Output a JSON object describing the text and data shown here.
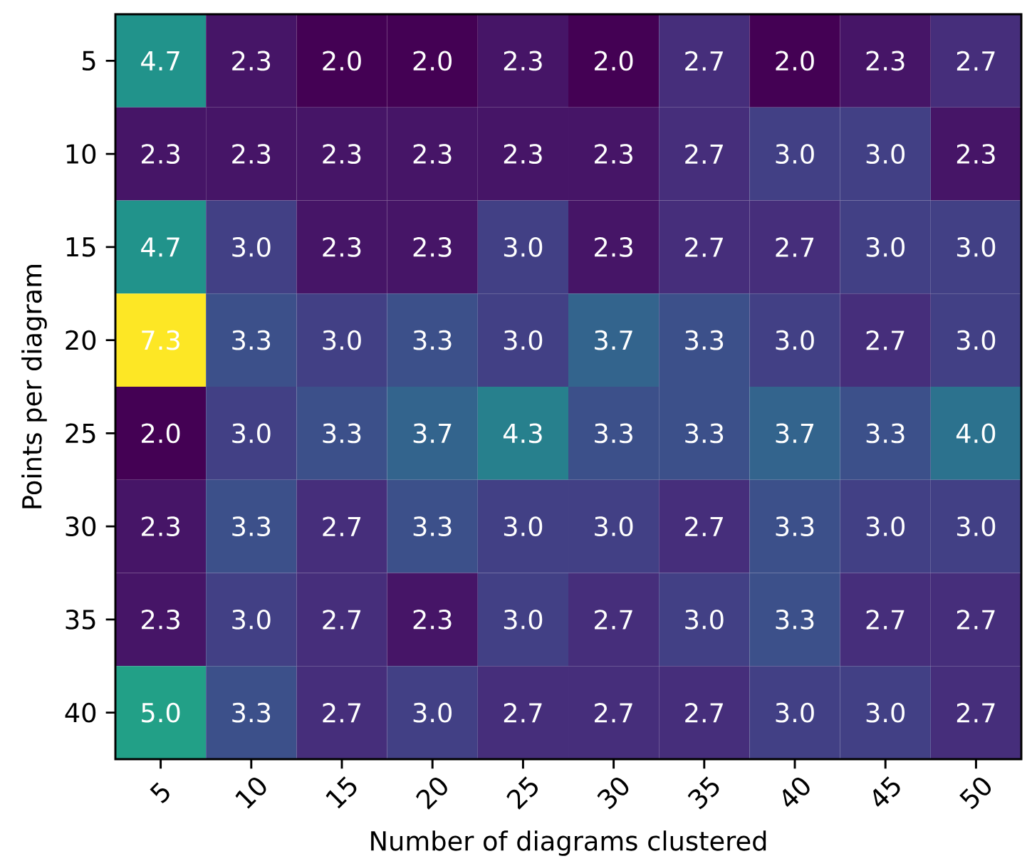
{
  "chart_data": {
    "type": "heatmap",
    "xlabel": "Number of diagrams clustered",
    "ylabel": "Points per diagram",
    "categories": [
      "5",
      "10",
      "15",
      "20",
      "25",
      "30",
      "35",
      "40",
      "45",
      "50"
    ],
    "y_categories": [
      "5",
      "10",
      "15",
      "20",
      "25",
      "30",
      "35",
      "40"
    ],
    "cells": [
      [
        4.7,
        2.3,
        2.0,
        2.0,
        2.3,
        2.0,
        2.7,
        2.0,
        2.3,
        2.7
      ],
      [
        2.3,
        2.3,
        2.3,
        2.3,
        2.3,
        2.3,
        2.7,
        3.0,
        3.0,
        2.3
      ],
      [
        4.7,
        3.0,
        2.3,
        2.3,
        3.0,
        2.3,
        2.7,
        2.7,
        3.0,
        3.0
      ],
      [
        7.3,
        3.3,
        3.0,
        3.3,
        3.0,
        3.7,
        3.3,
        3.0,
        2.7,
        3.0
      ],
      [
        2.0,
        3.0,
        3.3,
        3.7,
        4.3,
        3.3,
        3.3,
        3.7,
        3.3,
        4.0
      ],
      [
        2.3,
        3.3,
        2.7,
        3.3,
        3.0,
        3.0,
        2.7,
        3.3,
        3.0,
        3.0
      ],
      [
        2.3,
        3.0,
        2.7,
        2.3,
        3.0,
        2.7,
        3.0,
        3.3,
        2.7,
        2.7
      ],
      [
        5.0,
        3.3,
        2.7,
        3.0,
        2.7,
        2.7,
        2.7,
        3.0,
        3.0,
        2.7
      ]
    ],
    "cell_labels": [
      [
        "4.7",
        "2.3",
        "2.0",
        "2.0",
        "2.3",
        "2.0",
        "2.7",
        "2.0",
        "2.3",
        "2.7"
      ],
      [
        "2.3",
        "2.3",
        "2.3",
        "2.3",
        "2.3",
        "2.3",
        "2.7",
        "3.0",
        "3.0",
        "2.3"
      ],
      [
        "4.7",
        "3.0",
        "2.3",
        "2.3",
        "3.0",
        "2.3",
        "2.7",
        "2.7",
        "3.0",
        "3.0"
      ],
      [
        "7.3",
        "3.3",
        "3.0",
        "3.3",
        "3.0",
        "3.7",
        "3.3",
        "3.0",
        "2.7",
        "3.0"
      ],
      [
        "2.0",
        "3.0",
        "3.3",
        "3.7",
        "4.3",
        "3.3",
        "3.3",
        "3.7",
        "3.3",
        "4.0"
      ],
      [
        "2.3",
        "3.3",
        "2.7",
        "3.3",
        "3.0",
        "3.0",
        "2.7",
        "3.3",
        "3.0",
        "3.0"
      ],
      [
        "2.3",
        "3.0",
        "2.7",
        "2.3",
        "3.0",
        "2.7",
        "3.0",
        "3.3",
        "2.7",
        "2.7"
      ],
      [
        "5.0",
        "3.3",
        "2.7",
        "3.0",
        "2.7",
        "2.7",
        "2.7",
        "3.0",
        "3.0",
        "2.7"
      ]
    ]
  }
}
